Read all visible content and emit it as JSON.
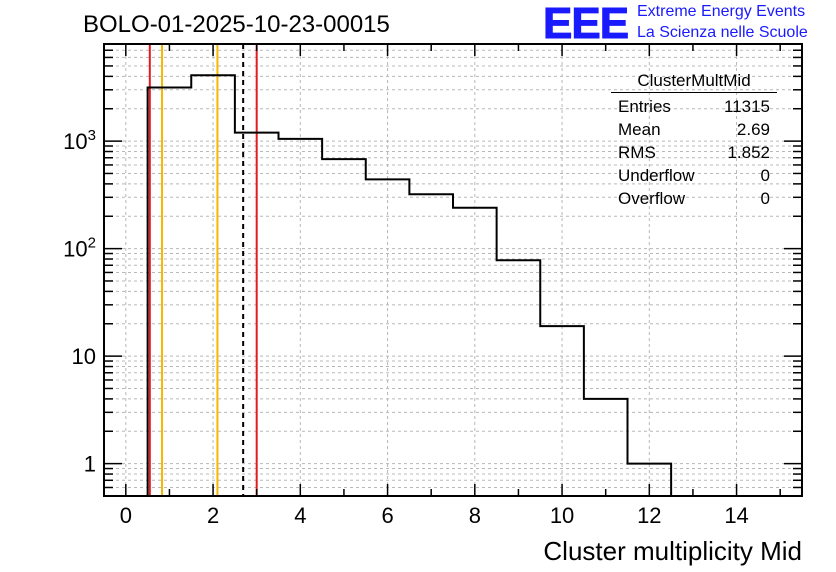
{
  "page_title": "BOLO-01-2025-10-23-00015",
  "logo": {
    "mark": "EEE",
    "line1": "Extreme Energy Events",
    "line2": "La Scienza nelle Scuole"
  },
  "stats_box": {
    "title": "ClusterMultMid",
    "rows": [
      {
        "label": "Entries",
        "value": "11315"
      },
      {
        "label": "Mean",
        "value": "2.69"
      },
      {
        "label": "RMS",
        "value": "1.852"
      },
      {
        "label": "Underflow",
        "value": "0"
      },
      {
        "label": "Overflow",
        "value": "0"
      }
    ]
  },
  "chart_data": {
    "type": "histogram",
    "title": "BOLO-01-2025-10-23-00015",
    "xlabel": "Cluster multiplicity Mid",
    "ylabel": "",
    "yscale": "log",
    "xlim": [
      -0.5,
      15.5
    ],
    "ylim": [
      0.5,
      8000
    ],
    "grid": true,
    "x_ticks": [
      0,
      2,
      4,
      6,
      8,
      10,
      12,
      14
    ],
    "y_ticks": [
      {
        "value": 1,
        "label": "1"
      },
      {
        "value": 10,
        "label": "10"
      },
      {
        "value": 100,
        "label": "10^2"
      },
      {
        "value": 1000,
        "label": "10^3"
      }
    ],
    "bin_edges": [
      0.5,
      1.5,
      2.5,
      3.5,
      4.5,
      5.5,
      6.5,
      7.5,
      8.5,
      9.5,
      10.5,
      11.5,
      12.5
    ],
    "counts": [
      3150,
      4100,
      1200,
      1050,
      680,
      440,
      320,
      240,
      78,
      19,
      4,
      1
    ],
    "markers": [
      {
        "x": 0.55,
        "color": "#e41a1c",
        "style": "solid"
      },
      {
        "x": 0.83,
        "color": "#f5b800",
        "style": "solid"
      },
      {
        "x": 2.1,
        "color": "#f5b800",
        "style": "solid"
      },
      {
        "x": 2.69,
        "color": "#000000",
        "style": "dashed"
      },
      {
        "x": 3.0,
        "color": "#e41a1c",
        "style": "solid"
      }
    ]
  }
}
